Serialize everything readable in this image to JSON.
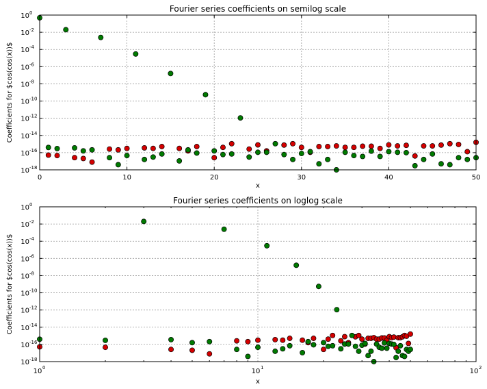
{
  "chart_data": [
    {
      "type": "scatter",
      "title": "Fourier series coefficients on semilog scale",
      "xlabel": "x",
      "ylabel": "Coefficients for $cos(cos(x))$",
      "xscale": "linear",
      "yscale": "log",
      "xlim": [
        0,
        50
      ],
      "ylim": [
        1e-18,
        1
      ],
      "grid": true,
      "x_ticks": [
        0,
        10,
        20,
        30,
        40,
        50
      ],
      "x_tick_labels": [
        "0",
        "10",
        "20",
        "30",
        "40",
        "50"
      ],
      "y_tick_exponents": [
        "0",
        "-2",
        "-4",
        "-6",
        "-8",
        "-10",
        "-12",
        "-14",
        "-16",
        "-18"
      ],
      "series": [
        {
          "color": "#d40000",
          "points": [
            [
              1,
              5.2e-17
            ],
            [
              2,
              4.6e-17
            ],
            [
              4,
              2.6e-17
            ],
            [
              5,
              2.1e-17
            ],
            [
              6,
              8e-18
            ],
            [
              8,
              2.6e-16
            ],
            [
              9,
              2.1e-16
            ],
            [
              10,
              3.1e-16
            ],
            [
              12,
              3.6e-16
            ],
            [
              13,
              3.1e-16
            ],
            [
              14,
              5.1e-16
            ],
            [
              16,
              3.1e-16
            ],
            [
              17,
              1.6e-16
            ],
            [
              18,
              5.1e-16
            ],
            [
              20,
              2.6e-17
            ],
            [
              21,
              4.1e-16
            ],
            [
              22,
              1.1e-15
            ],
            [
              24,
              2.6e-16
            ],
            [
              25,
              8e-16
            ],
            [
              26,
              1.6e-16
            ],
            [
              28,
              7.6e-16
            ],
            [
              29,
              1.1e-15
            ],
            [
              30,
              4.1e-16
            ],
            [
              31,
              1.1e-16
            ],
            [
              32,
              5.1e-16
            ],
            [
              33,
              5.1e-16
            ],
            [
              34,
              6.1e-16
            ],
            [
              35,
              4.1e-16
            ],
            [
              36,
              4.1e-16
            ],
            [
              37,
              5.6e-16
            ],
            [
              38,
              5.6e-16
            ],
            [
              39,
              3.1e-16
            ],
            [
              40,
              8e-16
            ],
            [
              41,
              6.1e-16
            ],
            [
              42,
              7.1e-16
            ],
            [
              43,
              4.1e-17
            ],
            [
              44,
              6.1e-16
            ],
            [
              45,
              6.1e-16
            ],
            [
              46,
              7.6e-16
            ],
            [
              47,
              1.1e-15
            ],
            [
              48,
              9e-16
            ],
            [
              49,
              1.3e-16
            ],
            [
              50,
              1.6e-15
            ]
          ]
        },
        {
          "color": "#007a00",
          "points": [
            [
              0,
              0.48
            ],
            [
              1,
              4e-16
            ],
            [
              2,
              3e-16
            ],
            [
              3,
              0.0198
            ],
            [
              4,
              3.6e-16
            ],
            [
              5,
              1.6e-16
            ],
            [
              6,
              2.1e-16
            ],
            [
              7,
              0.0025
            ],
            [
              8,
              2.6e-17
            ],
            [
              9,
              4e-18
            ],
            [
              10,
              4.6e-17
            ],
            [
              11,
              3e-05
            ],
            [
              12,
              1.6e-17
            ],
            [
              13,
              3.1e-17
            ],
            [
              14,
              7e-17
            ],
            [
              15,
              1.6e-07
            ],
            [
              16,
              1.1e-17
            ],
            [
              17,
              2.1e-16
            ],
            [
              18,
              9e-17
            ],
            [
              19,
              5.5e-10
            ],
            [
              20,
              1.6e-16
            ],
            [
              21,
              6e-17
            ],
            [
              22,
              7e-17
            ],
            [
              23,
              1.1e-12
            ],
            [
              24,
              3.1e-17
            ],
            [
              25,
              1.1e-16
            ],
            [
              26,
              1.1e-16
            ],
            [
              27,
              1.1e-15
            ],
            [
              28,
              6e-17
            ],
            [
              29,
              1.6e-17
            ],
            [
              30,
              8e-17
            ],
            [
              31,
              1.3e-16
            ],
            [
              32,
              5e-18
            ],
            [
              33,
              1.6e-17
            ],
            [
              34,
              1e-18
            ],
            [
              35,
              1.1e-16
            ],
            [
              36,
              4.6e-17
            ],
            [
              37,
              3.6e-17
            ],
            [
              38,
              1.5e-16
            ],
            [
              39,
              3.6e-17
            ],
            [
              40,
              1.3e-16
            ],
            [
              41,
              1.1e-16
            ],
            [
              42,
              1e-16
            ],
            [
              43,
              3e-18
            ],
            [
              44,
              1.6e-17
            ],
            [
              45,
              7e-17
            ],
            [
              46,
              5e-18
            ],
            [
              47,
              4e-18
            ],
            [
              48,
              2.6e-17
            ],
            [
              49,
              1.6e-17
            ],
            [
              50,
              2.6e-17
            ]
          ]
        }
      ]
    },
    {
      "type": "scatter",
      "title": "Fourier series coefficients on loglog scale",
      "xlabel": "x",
      "ylabel": "Coefficients for $cos(cos(x))$",
      "xscale": "log",
      "yscale": "log",
      "xlim": [
        1,
        100
      ],
      "ylim": [
        1e-18,
        1
      ],
      "grid": true,
      "x_tick_exponents": [
        "0",
        "1",
        "2"
      ],
      "y_tick_exponents": [
        "0",
        "-2",
        "-4",
        "-6",
        "-8",
        "-10",
        "-12",
        "-14",
        "-16",
        "-18"
      ],
      "series": [
        {
          "color": "#d40000",
          "points": [
            [
              1,
              5.2e-17
            ],
            [
              2,
              4.6e-17
            ],
            [
              4,
              2.6e-17
            ],
            [
              5,
              2.1e-17
            ],
            [
              6,
              8e-18
            ],
            [
              8,
              2.6e-16
            ],
            [
              9,
              2.1e-16
            ],
            [
              10,
              3.1e-16
            ],
            [
              12,
              3.6e-16
            ],
            [
              13,
              3.1e-16
            ],
            [
              14,
              5.1e-16
            ],
            [
              16,
              3.1e-16
            ],
            [
              17,
              1.6e-16
            ],
            [
              18,
              5.1e-16
            ],
            [
              20,
              2.6e-17
            ],
            [
              21,
              4.1e-16
            ],
            [
              22,
              1.1e-15
            ],
            [
              24,
              2.6e-16
            ],
            [
              25,
              8e-16
            ],
            [
              26,
              1.6e-16
            ],
            [
              28,
              7.6e-16
            ],
            [
              29,
              1.1e-15
            ],
            [
              30,
              4.1e-16
            ],
            [
              31,
              1.1e-16
            ],
            [
              32,
              5.1e-16
            ],
            [
              33,
              5.1e-16
            ],
            [
              34,
              6.1e-16
            ],
            [
              35,
              4.1e-16
            ],
            [
              36,
              4.1e-16
            ],
            [
              37,
              5.6e-16
            ],
            [
              38,
              5.6e-16
            ],
            [
              39,
              3.1e-16
            ],
            [
              40,
              8e-16
            ],
            [
              41,
              6.1e-16
            ],
            [
              42,
              7.1e-16
            ],
            [
              43,
              4.1e-17
            ],
            [
              44,
              6.1e-16
            ],
            [
              45,
              6.1e-16
            ],
            [
              46,
              7.6e-16
            ],
            [
              47,
              1.1e-15
            ],
            [
              48,
              9e-16
            ],
            [
              49,
              1.3e-16
            ],
            [
              50,
              1.6e-15
            ]
          ]
        },
        {
          "color": "#007a00",
          "points": [
            [
              1,
              4e-16
            ],
            [
              2,
              3e-16
            ],
            [
              3,
              0.0198
            ],
            [
              4,
              3.6e-16
            ],
            [
              5,
              1.6e-16
            ],
            [
              6,
              2.1e-16
            ],
            [
              7,
              0.0025
            ],
            [
              8,
              2.6e-17
            ],
            [
              9,
              4e-18
            ],
            [
              10,
              4.6e-17
            ],
            [
              11,
              3e-05
            ],
            [
              12,
              1.6e-17
            ],
            [
              13,
              3.1e-17
            ],
            [
              14,
              7e-17
            ],
            [
              15,
              1.6e-07
            ],
            [
              16,
              1.1e-17
            ],
            [
              17,
              2.1e-16
            ],
            [
              18,
              9e-17
            ],
            [
              19,
              5.5e-10
            ],
            [
              20,
              1.6e-16
            ],
            [
              21,
              6e-17
            ],
            [
              22,
              7e-17
            ],
            [
              23,
              1.1e-12
            ],
            [
              24,
              3.1e-17
            ],
            [
              25,
              1.1e-16
            ],
            [
              26,
              1.1e-16
            ],
            [
              27,
              1.1e-15
            ],
            [
              28,
              6e-17
            ],
            [
              29,
              1.6e-17
            ],
            [
              30,
              8e-17
            ],
            [
              31,
              1.3e-16
            ],
            [
              32,
              5e-18
            ],
            [
              33,
              1.6e-17
            ],
            [
              34,
              1e-18
            ],
            [
              35,
              1.1e-16
            ],
            [
              36,
              4.6e-17
            ],
            [
              37,
              3.6e-17
            ],
            [
              38,
              1.5e-16
            ],
            [
              39,
              3.6e-17
            ],
            [
              40,
              1.3e-16
            ],
            [
              41,
              1.1e-16
            ],
            [
              42,
              1e-16
            ],
            [
              43,
              3e-18
            ],
            [
              44,
              1.6e-17
            ],
            [
              45,
              7e-17
            ],
            [
              46,
              5e-18
            ],
            [
              47,
              4e-18
            ],
            [
              48,
              2.6e-17
            ],
            [
              49,
              1.6e-17
            ],
            [
              50,
              2.6e-17
            ]
          ]
        }
      ]
    }
  ]
}
